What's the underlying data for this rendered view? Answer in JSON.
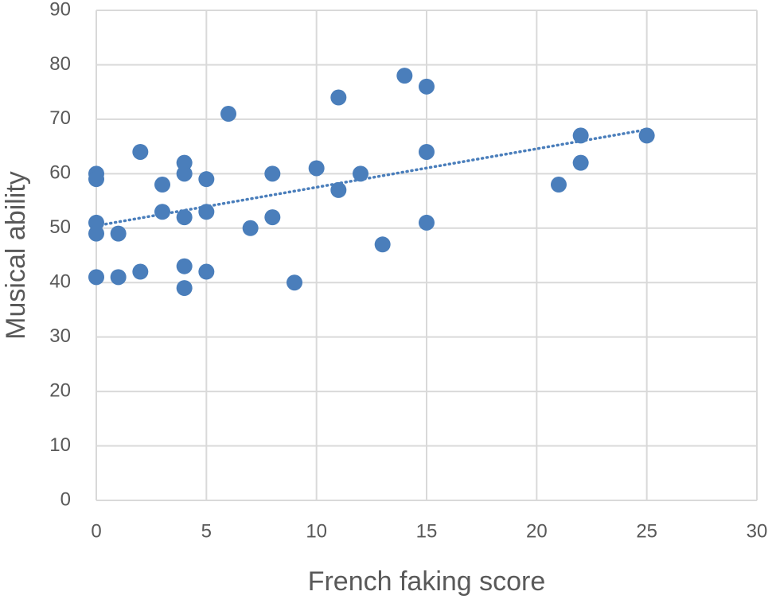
{
  "chart_data": {
    "type": "scatter",
    "x_label": "French faking score",
    "y_label": "Musical ability",
    "x": [
      0,
      0,
      0,
      0,
      0,
      1,
      1,
      2,
      2,
      3,
      3,
      4,
      4,
      4,
      4,
      4,
      5,
      5,
      5,
      6,
      7,
      8,
      8,
      9,
      10,
      11,
      11,
      12,
      13,
      14,
      15,
      15,
      15,
      21,
      22,
      22,
      25
    ],
    "values": [
      60,
      59,
      51,
      49,
      41,
      49,
      41,
      64,
      42,
      58,
      53,
      62,
      60,
      52,
      43,
      39,
      59,
      53,
      42,
      71,
      50,
      60,
      52,
      40,
      61,
      74,
      57,
      60,
      47,
      78,
      76,
      64,
      51,
      58,
      67,
      62,
      67
    ],
    "color": "#4a7ebb",
    "trendline": "linear",
    "xlim": [
      0,
      30
    ],
    "xticks": [
      0,
      5,
      10,
      15,
      20,
      25,
      30
    ],
    "ylim": [
      0,
      90
    ],
    "yticks": [
      0,
      10,
      20,
      30,
      40,
      50,
      60,
      70,
      80,
      90
    ],
    "grid": true
  }
}
